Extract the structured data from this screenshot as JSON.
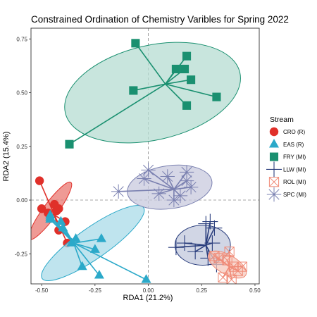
{
  "chart_data": {
    "type": "scatter",
    "title": "Constrained Ordination of Chemistry Varibles for Spring 2022",
    "xlabel": "RDA1 (21.2%)",
    "ylabel": "RDA2 (15.4%)",
    "xlim": [
      -0.55,
      0.52
    ],
    "ylim": [
      -0.39,
      0.8
    ],
    "xticks": [
      -0.5,
      -0.25,
      0.0,
      0.25,
      0.5
    ],
    "xtick_labels": [
      "-0.50",
      "-0.25",
      "0.00",
      "0.25",
      "0.50"
    ],
    "yticks": [
      -0.25,
      0.0,
      0.25,
      0.5,
      0.75
    ],
    "ytick_labels": [
      "-0.25",
      "0.00",
      "0.25",
      "0.50",
      "0.75"
    ],
    "grid": false,
    "reference_lines": {
      "x": 0,
      "y": 0,
      "style": "dashed"
    },
    "legend": {
      "title": "Stream",
      "position": "right"
    },
    "series": [
      {
        "name": "CRO (R)",
        "shape": "circle",
        "color": "#e0302a",
        "fill": "#e97872",
        "centroid": [
          -0.44,
          -0.07
        ],
        "points": [
          [
            -0.51,
            0.09
          ],
          [
            -0.5,
            -0.04
          ],
          [
            -0.44,
            -0.02
          ],
          [
            -0.43,
            -0.05
          ],
          [
            -0.42,
            -0.04
          ],
          [
            -0.42,
            -0.14
          ],
          [
            -0.47,
            -0.06
          ],
          [
            -0.38,
            -0.2
          ],
          [
            -0.39,
            -0.1
          ]
        ],
        "ellipse": {
          "cx": -0.46,
          "cy": -0.05,
          "rx": 0.165,
          "ry": 0.034,
          "angle_deg": 54
        }
      },
      {
        "name": "EAS (R)",
        "shape": "triangle",
        "color": "#2ba9c9",
        "fill": "#a9dbe8",
        "centroid": [
          -0.35,
          -0.2
        ],
        "points": [
          [
            -0.46,
            -0.07
          ],
          [
            -0.46,
            -0.09
          ],
          [
            -0.41,
            -0.1
          ],
          [
            -0.36,
            -0.2
          ],
          [
            -0.34,
            -0.18
          ],
          [
            -0.31,
            -0.31
          ],
          [
            -0.25,
            -0.23
          ],
          [
            -0.22,
            -0.18
          ],
          [
            -0.46,
            -0.08
          ],
          [
            -0.4,
            -0.13
          ],
          [
            -0.23,
            -0.35
          ],
          [
            -0.01,
            -0.37
          ]
        ],
        "ellipse": {
          "cx": -0.26,
          "cy": -0.2,
          "rx": 0.29,
          "ry": 0.072,
          "angle_deg": 35
        }
      },
      {
        "name": "FRY (MI)",
        "shape": "square",
        "color": "#1a9070",
        "fill": "#b6dcd2",
        "centroid": [
          0.08,
          0.54
        ],
        "points": [
          [
            -0.06,
            0.73
          ],
          [
            -0.07,
            0.51
          ],
          [
            0.13,
            0.61
          ],
          [
            0.17,
            0.61
          ],
          [
            0.18,
            0.67
          ],
          [
            0.2,
            0.56
          ],
          [
            0.18,
            0.44
          ],
          [
            0.32,
            0.48
          ],
          [
            -0.37,
            0.26
          ]
        ],
        "ellipse": {
          "cx": 0.02,
          "cy": 0.5,
          "rx": 0.42,
          "ry": 0.22,
          "angle_deg": 13
        }
      },
      {
        "name": "LLW (MI)",
        "shape": "cross",
        "color": "#2a3e7d",
        "fill": "#c2c8dc",
        "centroid": [
          0.27,
          -0.21
        ],
        "points": [
          [
            0.27,
            -0.11
          ],
          [
            0.29,
            -0.1
          ],
          [
            0.31,
            -0.13
          ],
          [
            0.3,
            -0.2
          ],
          [
            0.28,
            -0.27
          ],
          [
            0.13,
            -0.22
          ],
          [
            0.17,
            -0.2
          ],
          [
            0.22,
            -0.24
          ],
          [
            0.32,
            -0.3
          ]
        ],
        "ellipse": {
          "cx": 0.255,
          "cy": -0.21,
          "rx": 0.13,
          "ry": 0.093,
          "angle_deg": 0
        }
      },
      {
        "name": "ROL (MI)",
        "shape": "square-x",
        "color": "#f08a76",
        "fill": "#f5c8bc",
        "centroid": [
          0.38,
          -0.31
        ],
        "points": [
          [
            0.31,
            -0.26
          ],
          [
            0.33,
            -0.27
          ],
          [
            0.38,
            -0.24
          ],
          [
            0.42,
            -0.33
          ],
          [
            0.39,
            -0.37
          ],
          [
            0.35,
            -0.36
          ],
          [
            0.4,
            -0.31
          ],
          [
            0.37,
            -0.28
          ],
          [
            0.44,
            -0.31
          ]
        ],
        "ellipse": {
          "cx": 0.37,
          "cy": -0.3,
          "rx": 0.1,
          "ry": 0.045,
          "angle_deg": -30
        }
      },
      {
        "name": "SPC (MI)",
        "shape": "asterisk",
        "color": "#7a80b0",
        "fill": "#c8cade",
        "centroid": [
          0.12,
          0.05
        ],
        "points": [
          [
            0.0,
            0.14
          ],
          [
            -0.02,
            0.1
          ],
          [
            0.05,
            0.03
          ],
          [
            0.18,
            0.09
          ],
          [
            0.18,
            0.13
          ],
          [
            0.2,
            0.06
          ],
          [
            0.12,
            0.0
          ],
          [
            0.09,
            0.11
          ],
          [
            -0.14,
            0.04
          ],
          [
            0.15,
            0.02
          ]
        ],
        "ellipse": {
          "cx": 0.1,
          "cy": 0.06,
          "rx": 0.2,
          "ry": 0.1,
          "angle_deg": 8
        }
      }
    ]
  }
}
